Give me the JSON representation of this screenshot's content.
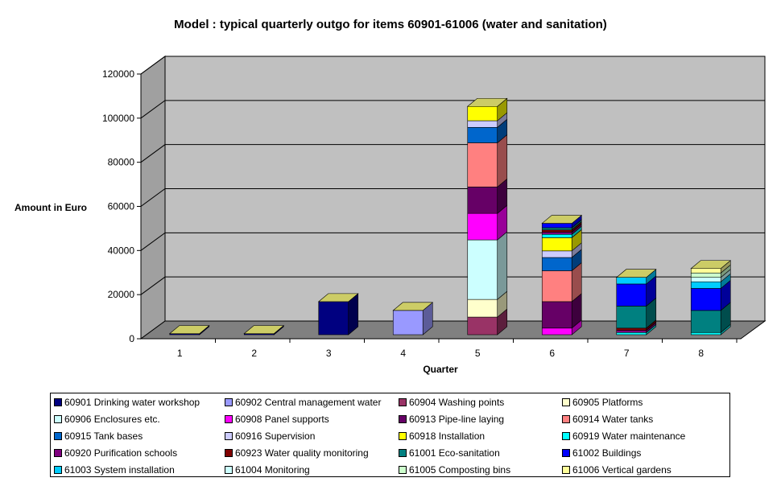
{
  "chart_data": {
    "type": "bar",
    "stacked": true,
    "three_d": true,
    "title": "Model : typical quarterly outgo for items 60901-61006 (water and sanitation)",
    "xlabel": "Quarter",
    "ylabel": "Amount in Euro",
    "categories": [
      "1",
      "2",
      "3",
      "4",
      "5",
      "6",
      "7",
      "8"
    ],
    "yticks": [
      "0",
      "20000",
      "40000",
      "60000",
      "80000",
      "100000",
      "120000"
    ],
    "ylim": [
      0,
      120000
    ],
    "grid": true,
    "legend_position": "bottom",
    "series": [
      {
        "name": "60901 Drinking water workshop",
        "color": "#000080",
        "values": [
          500,
          500,
          15000,
          0,
          0,
          0,
          0,
          0
        ]
      },
      {
        "name": "60902 Central management water",
        "color": "#9999ff",
        "values": [
          0,
          0,
          0,
          11000,
          0,
          0,
          0,
          0
        ]
      },
      {
        "name": "60904 Washing points",
        "color": "#993366",
        "values": [
          0,
          0,
          0,
          0,
          8000,
          0,
          0,
          0
        ]
      },
      {
        "name": "60905 Platforms",
        "color": "#ffffcc",
        "values": [
          0,
          0,
          0,
          0,
          8000,
          0,
          0,
          0
        ]
      },
      {
        "name": "60906 Enclosures etc.",
        "color": "#ccffff",
        "values": [
          0,
          0,
          0,
          0,
          27000,
          0,
          0,
          0
        ]
      },
      {
        "name": "60908 Panel supports",
        "color": "#ff00ff",
        "values": [
          0,
          0,
          0,
          0,
          12000,
          3000,
          0,
          0
        ]
      },
      {
        "name": "60913 Pipe-line laying",
        "color": "#660066",
        "values": [
          0,
          0,
          0,
          0,
          12000,
          12000,
          0,
          0
        ]
      },
      {
        "name": "60914 Water tanks",
        "color": "#ff8080",
        "values": [
          0,
          0,
          0,
          0,
          20000,
          14000,
          0,
          0
        ]
      },
      {
        "name": "60915 Tank bases",
        "color": "#0066cc",
        "values": [
          0,
          0,
          0,
          0,
          7000,
          6000,
          0,
          0
        ]
      },
      {
        "name": "60916 Supervision",
        "color": "#ccccff",
        "values": [
          0,
          0,
          0,
          0,
          3000,
          3000,
          0,
          0
        ]
      },
      {
        "name": "60918 Installation",
        "color": "#ffff00",
        "values": [
          0,
          0,
          0,
          0,
          6500,
          6000,
          0,
          0
        ]
      },
      {
        "name": "60919 Water maintenance",
        "color": "#00ffff",
        "values": [
          0,
          0,
          0,
          0,
          0,
          1500,
          1000,
          1000
        ]
      },
      {
        "name": "60920 Purification schools",
        "color": "#800080",
        "values": [
          0,
          0,
          0,
          0,
          0,
          1000,
          1000,
          0
        ]
      },
      {
        "name": "60923 Water quality monitoring",
        "color": "#800000",
        "values": [
          0,
          0,
          0,
          0,
          0,
          1000,
          1000,
          0
        ]
      },
      {
        "name": "61001 Eco-sanitation",
        "color": "#008080",
        "values": [
          0,
          0,
          0,
          0,
          0,
          1000,
          10000,
          10000
        ]
      },
      {
        "name": "61002 Buildings",
        "color": "#0000ff",
        "values": [
          0,
          0,
          0,
          0,
          0,
          2000,
          10000,
          10000
        ]
      },
      {
        "name": "61003 System installation",
        "color": "#00ccff",
        "values": [
          0,
          0,
          0,
          0,
          0,
          0,
          3000,
          3000
        ]
      },
      {
        "name": "61004 Monitoring",
        "color": "#ccffff",
        "values": [
          0,
          0,
          0,
          0,
          0,
          0,
          0,
          2000
        ]
      },
      {
        "name": "61005 Composting bins",
        "color": "#ccffcc",
        "values": [
          0,
          0,
          0,
          0,
          0,
          0,
          0,
          2000
        ]
      },
      {
        "name": "61006 Vertical gardens",
        "color": "#ffff99",
        "values": [
          0,
          0,
          0,
          0,
          0,
          0,
          0,
          2000
        ]
      }
    ]
  }
}
